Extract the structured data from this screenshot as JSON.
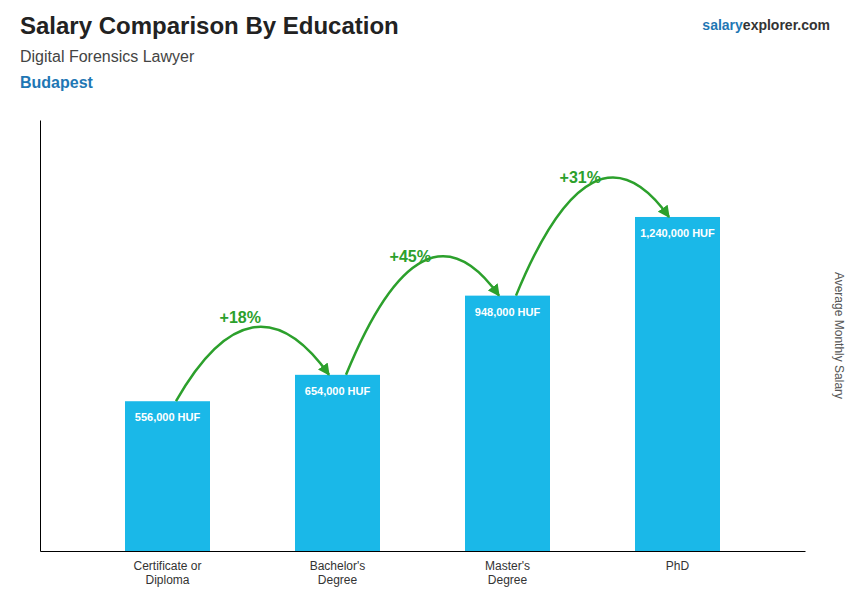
{
  "chart_data": {
    "type": "bar",
    "title": "Salary Comparison By Education",
    "subtitle": "Digital Forensics Lawyer",
    "ylabel": "Average Monthly Salary",
    "annotations": [
      "Budapest",
      "salary",
      "explorer.com"
    ],
    "change_labels": [
      "+18%",
      "+45%",
      "+31%"
    ],
    "categories": [
      "Certificate or\nDiploma",
      "Bachelor's\nDegree",
      "Master's\nDegree",
      "PhD"
    ],
    "values": [
      556000,
      654000,
      948000,
      1240000
    ],
    "value_labels": [
      "556,000 HUF",
      "654,000 HUF",
      "948,000 HUF",
      "1,240,000 HUF"
    ],
    "data_labels": true,
    "color": "#1ab8e8",
    "ylim": [
      0,
      1600000
    ],
    "grid": false,
    "tick_labels": "x"
  }
}
